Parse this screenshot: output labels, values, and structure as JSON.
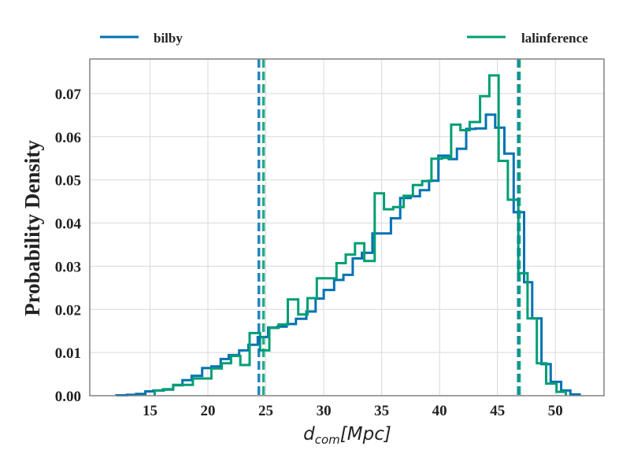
{
  "chart_data": {
    "type": "histogram-step",
    "xlabel": "d_com[Mpc]",
    "xlabel_parts": {
      "base": "d",
      "sub": "com",
      "rest": "[Mpc]"
    },
    "ylabel": "Probability Density",
    "xlim": [
      9.8,
      54.2
    ],
    "ylim": [
      0,
      0.078
    ],
    "xticks": [
      15,
      20,
      25,
      30,
      35,
      40,
      45,
      50
    ],
    "yticks": [
      0.0,
      0.01,
      0.02,
      0.03,
      0.04,
      0.05,
      0.06,
      0.07
    ],
    "grid": true,
    "legend_placement": "above-plot",
    "series": [
      {
        "name": "bilby",
        "color": "#0072b2",
        "edges": [
          12.1,
          13.0,
          13.8,
          14.6,
          15.3,
          16.1,
          17.0,
          17.8,
          18.6,
          19.5,
          20.3,
          21.1,
          21.8,
          22.7,
          23.5,
          24.3,
          25.2,
          26.0,
          26.8,
          27.6,
          28.5,
          29.3,
          30.0,
          30.9,
          31.7,
          32.5,
          33.3,
          34.2,
          35.0,
          35.8,
          36.6,
          37.5,
          38.3,
          39.1,
          39.9,
          40.8,
          41.5,
          42.3,
          43.1,
          44.0,
          44.8,
          45.6,
          46.4,
          47.3,
          48.0,
          48.8,
          49.6,
          50.5,
          51.3,
          52.1
        ],
        "values": [
          0.0001,
          0.0002,
          0.0004,
          0.001,
          0.0012,
          0.0014,
          0.0024,
          0.0036,
          0.0046,
          0.0064,
          0.0068,
          0.0085,
          0.0094,
          0.0105,
          0.0118,
          0.0136,
          0.0158,
          0.016,
          0.0166,
          0.0178,
          0.0195,
          0.0225,
          0.0245,
          0.0268,
          0.028,
          0.0318,
          0.0331,
          0.0376,
          0.0376,
          0.0411,
          0.0458,
          0.0462,
          0.0476,
          0.0498,
          0.0556,
          0.0548,
          0.0572,
          0.0618,
          0.0619,
          0.0651,
          0.0621,
          0.0561,
          0.0425,
          0.0263,
          0.0179,
          0.0073,
          0.0032,
          0.0012,
          0.0003
        ]
      },
      {
        "name": "lalinference",
        "color": "#009e73",
        "edges": [
          15.4,
          16.2,
          17.0,
          17.8,
          18.7,
          19.5,
          20.3,
          21.2,
          22.0,
          22.8,
          23.6,
          24.5,
          25.3,
          26.1,
          26.9,
          27.8,
          28.6,
          29.4,
          30.2,
          31.1,
          31.9,
          32.7,
          33.5,
          34.4,
          35.2,
          36.0,
          36.9,
          37.7,
          38.5,
          39.3,
          40.2,
          41.0,
          41.8,
          42.6,
          43.5,
          44.3,
          45.1,
          45.9,
          46.8,
          47.6,
          48.4,
          49.2,
          50.1,
          50.9
        ],
        "values": [
          0.0012,
          0.0015,
          0.0025,
          0.0025,
          0.004,
          0.004,
          0.0063,
          0.0075,
          0.0092,
          0.0071,
          0.0145,
          0.0105,
          0.0157,
          0.0165,
          0.0223,
          0.0188,
          0.0226,
          0.0272,
          0.0272,
          0.0307,
          0.0327,
          0.0353,
          0.0312,
          0.0469,
          0.0432,
          0.0437,
          0.0463,
          0.0488,
          0.0497,
          0.0549,
          0.0551,
          0.0628,
          0.0615,
          0.0634,
          0.0694,
          0.0742,
          0.0544,
          0.0454,
          0.0284,
          0.0179,
          0.0075,
          0.0028,
          0.0009
        ]
      }
    ],
    "vlines": [
      {
        "x": 24.4,
        "color": "#0072b2",
        "style": "dashed"
      },
      {
        "x": 46.8,
        "color": "#0072b2",
        "style": "dashed"
      },
      {
        "x": 24.8,
        "color": "#009e73",
        "style": "dashed"
      },
      {
        "x": 46.9,
        "color": "#009e73",
        "style": "dashed"
      }
    ]
  }
}
